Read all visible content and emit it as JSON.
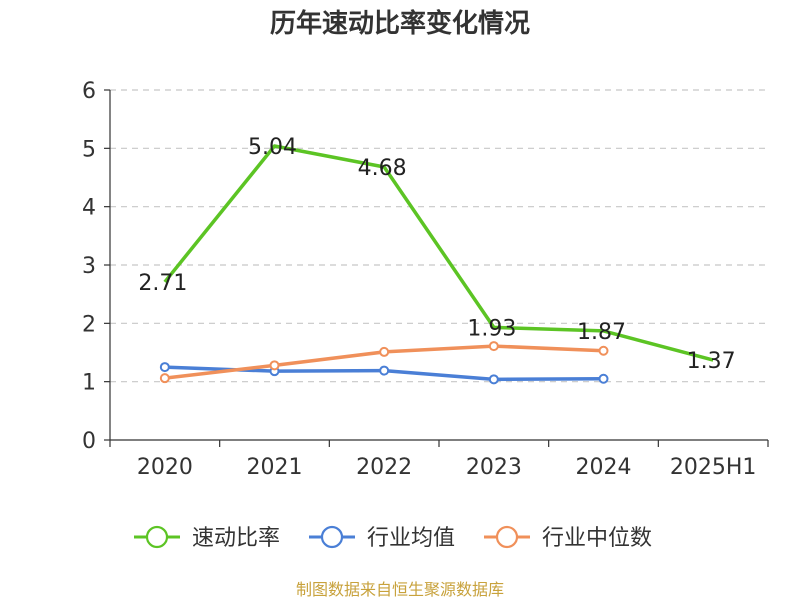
{
  "chart_data": {
    "type": "line",
    "title": "历年速动比率变化情况",
    "categories": [
      "2020",
      "2021",
      "2022",
      "2023",
      "2024",
      "2025H1"
    ],
    "ylim": [
      0,
      6
    ],
    "yticks": [
      0,
      1,
      2,
      3,
      4,
      5,
      6
    ],
    "grid": true,
    "legend_position": "bottom",
    "series": [
      {
        "name": "速动比率",
        "color": "#5cc424",
        "values": [
          2.71,
          5.04,
          4.68,
          1.93,
          1.87,
          1.37
        ],
        "labels": [
          "2.71",
          "5.04",
          "4.68",
          "1.93",
          "1.87",
          "1.37"
        ]
      },
      {
        "name": "行业均值",
        "color": "#4a7fd6",
        "values": [
          1.25,
          1.18,
          1.19,
          1.04,
          1.05,
          null
        ]
      },
      {
        "name": "行业中位数",
        "color": "#f0905a",
        "values": [
          1.06,
          1.28,
          1.51,
          1.61,
          1.53,
          null
        ]
      }
    ],
    "source": "制图数据来自恒生聚源数据库"
  }
}
